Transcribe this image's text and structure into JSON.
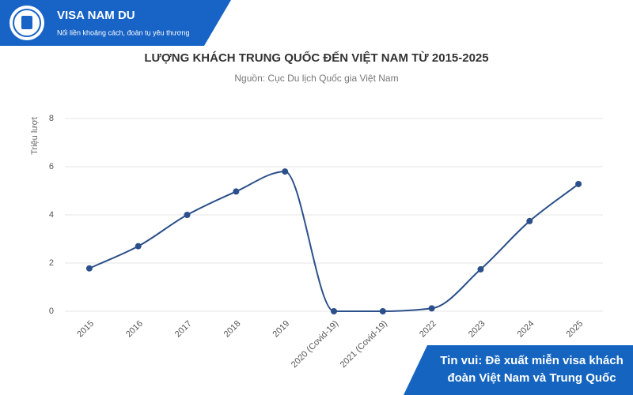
{
  "header": {
    "brand": "VISA NAM DU",
    "slogan": "Nối liền khoảng cách, đoàn tụ yêu thương"
  },
  "banner": {
    "text": "Tin vui: Đề xuất miễn visa khách đoàn Việt Nam và Trung Quốc"
  },
  "chart_data": {
    "type": "line",
    "title": "LƯỢNG KHÁCH TRUNG QUỐC ĐẾN VIỆT NAM TỪ 2015-2025",
    "subtitle": "Nguồn: Cục Du lịch Quốc gia Việt Nam",
    "y_label": "Triệu lượt",
    "categories": [
      "2015",
      "2016",
      "2017",
      "2018",
      "2019",
      "2020 (Covid-19)",
      "2021 (Covid-19)",
      "2022",
      "2023",
      "2024",
      "2025"
    ],
    "values": [
      1.78,
      2.7,
      4.0,
      4.97,
      5.8,
      0.0,
      0.0,
      0.12,
      1.74,
      3.74,
      5.28
    ],
    "color": "#2b4f8a",
    "ylim": [
      0,
      8
    ],
    "yticks": [
      0,
      2,
      4,
      6,
      8
    ],
    "grid": true
  }
}
